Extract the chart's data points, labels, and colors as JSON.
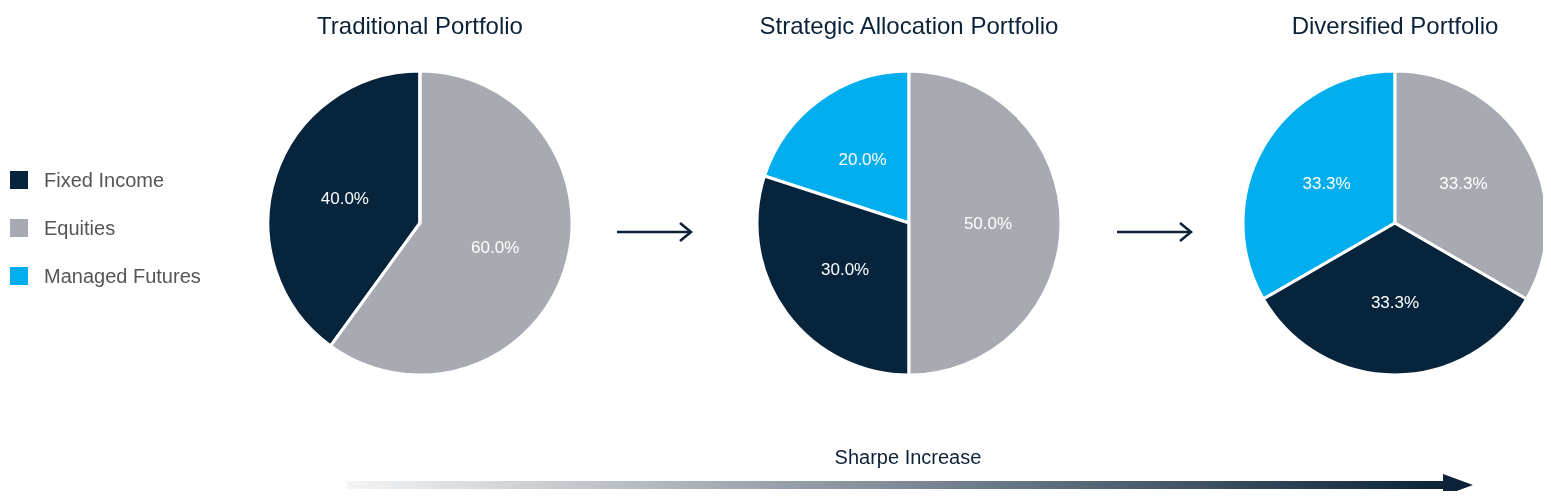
{
  "chart_data": [
    {
      "type": "pie",
      "title": "Traditional Portfolio",
      "categories": [
        "Fixed Income",
        "Equities",
        "Managed Futures"
      ],
      "values": [
        40.0,
        60.0,
        0
      ],
      "colors": [
        "#06243c",
        "#a8aab2",
        "#03aeef"
      ],
      "value_labels": [
        "40.0%",
        "60.0%",
        null
      ],
      "legend": "left"
    },
    {
      "type": "pie",
      "title": "Strategic Allocation Portfolio",
      "categories": [
        null,
        null,
        null
      ],
      "values": [
        20.0,
        30.0,
        50.0
      ],
      "colors": [
        "#03aeef",
        "#06243c",
        "#a8aab2"
      ],
      "value_labels": [
        "20.0%",
        "30.0%",
        "50.0%"
      ]
    },
    {
      "type": "pie",
      "title": "Diversified Portfolio",
      "categories": [
        null,
        null,
        null
      ],
      "values": [
        33.3,
        33.3,
        33.3
      ],
      "colors": [
        "#03aeef",
        "#06243c",
        "#a8aab2"
      ],
      "value_labels": [
        "33.3%",
        "33.3%",
        "33.3%"
      ]
    },
    {
      "type": "other",
      "annotations": [
        "Sharpe Increase"
      ]
    }
  ]
}
